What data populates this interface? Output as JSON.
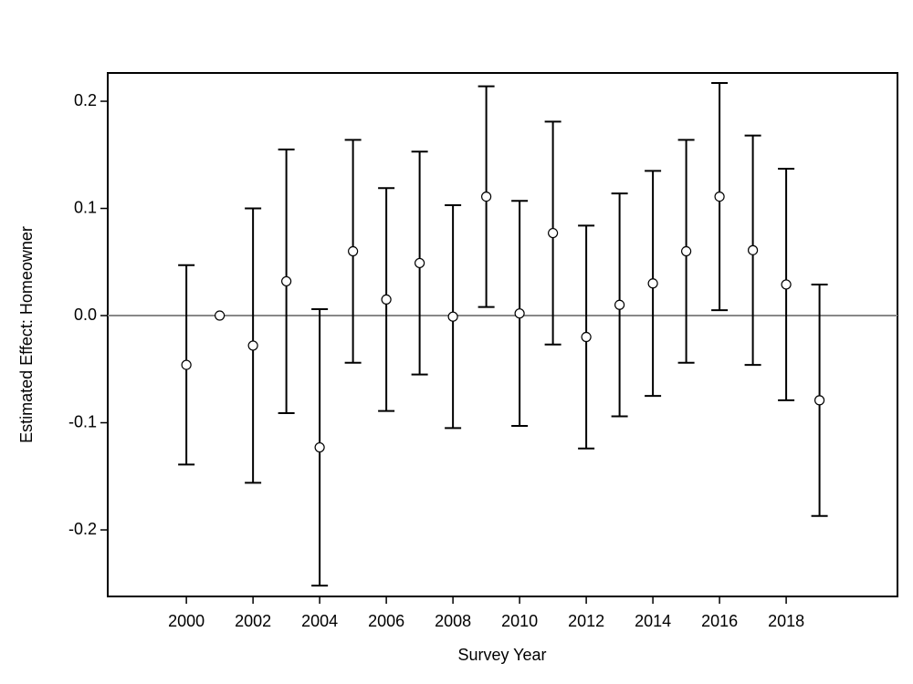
{
  "chart_data": {
    "type": "errorbar",
    "x_label": "Survey Year",
    "y_label": "Estimated Effect: Homeowner",
    "x": [
      2000,
      2001,
      2002,
      2003,
      2004,
      2005,
      2006,
      2007,
      2008,
      2009,
      2010,
      2011,
      2012,
      2013,
      2014,
      2015,
      2016,
      2017,
      2018,
      2019
    ],
    "values": [
      -0.046,
      0.0,
      -0.028,
      0.032,
      -0.123,
      0.06,
      0.015,
      0.049,
      -0.001,
      0.111,
      0.002,
      0.077,
      -0.02,
      0.01,
      0.03,
      0.06,
      0.111,
      0.061,
      0.029,
      -0.079
    ],
    "errors": [
      0.093,
      null,
      0.128,
      0.123,
      0.129,
      0.104,
      0.104,
      0.104,
      0.104,
      0.103,
      0.105,
      0.104,
      0.104,
      0.104,
      0.105,
      0.104,
      0.106,
      0.107,
      0.108,
      0.108
    ],
    "color": "#000000",
    "reference_line": 0,
    "reference_color": "#888888",
    "xlim": [
      1997.64,
      2021.34
    ],
    "ylim": [
      -0.2621,
      0.2264
    ],
    "xticks": [
      2000,
      2002,
      2004,
      2006,
      2008,
      2010,
      2012,
      2014,
      2016,
      2018
    ],
    "yticks": [
      -0.2,
      -0.1,
      {
        "value": 0,
        "label": "0.0"
      },
      0.1,
      0.2
    ]
  }
}
